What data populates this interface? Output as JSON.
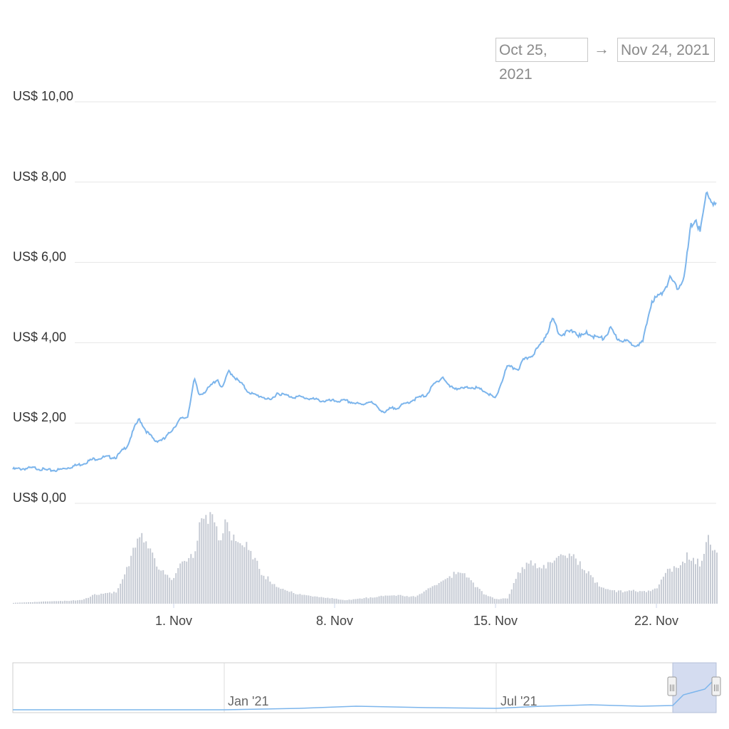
{
  "range_selector": {
    "from": "Oct 25, 2021",
    "to": "Nov 24, 2021",
    "arrow": "→"
  },
  "navigator": {
    "labels": [
      "Jan '21",
      "Jul '21"
    ],
    "handle_grip": "|||"
  },
  "colors": {
    "price_line": "#7cb5ec",
    "volume_bars": "#c6cbd4",
    "grid": "#e6e6e6",
    "nav_selection": "#d4dcf0"
  },
  "chart_data": {
    "type": "line",
    "y_ticks": [
      "US$ 0,00",
      "US$ 2,00",
      "US$ 4,00",
      "US$ 6,00",
      "US$ 8,00",
      "US$ 10,00"
    ],
    "y_tick_values": [
      0,
      2,
      4,
      6,
      8,
      10
    ],
    "ylim": [
      0,
      10
    ],
    "x_ticks": [
      "1. Nov",
      "8. Nov",
      "15. Nov",
      "22. Nov"
    ],
    "x_tick_values": [
      7,
      14,
      21,
      28
    ],
    "xlim": [
      0,
      30.6
    ],
    "grid": true,
    "series": [
      {
        "type": "line",
        "x": [
          0,
          1,
          1.5,
          2,
          3,
          3.5,
          4,
          4.5,
          5,
          5.3,
          5.5,
          5.8,
          6.2,
          6.6,
          7.3,
          7.6,
          7.9,
          8.1,
          8.4,
          8.9,
          9.1,
          9.4,
          9.8,
          10,
          10.2,
          10.5,
          10.9,
          11.2,
          11.5,
          11.8,
          12.2,
          12.5,
          13.5,
          14.5,
          15.2,
          15.5,
          16.2,
          16.4,
          16.8,
          17.5,
          18,
          18.3,
          18.7,
          19,
          19.5,
          20,
          20.5,
          21,
          21.5,
          22,
          22.2,
          22.6,
          22.9,
          23.2,
          23.5,
          23.8,
          24.1,
          24.4,
          24.7,
          25,
          25.3,
          25.7,
          26,
          26.3,
          26.6,
          27,
          27.4,
          27.8,
          28.2,
          28.6,
          28.9,
          29.2,
          29.5,
          29.7,
          29.9,
          30.2,
          30.4,
          30.6
        ],
        "y": [
          0.85,
          0.88,
          0.82,
          0.83,
          0.98,
          1.1,
          1.15,
          1.15,
          1.45,
          1.9,
          2.1,
          1.8,
          1.55,
          1.6,
          2.1,
          2.15,
          3.1,
          2.7,
          2.8,
          3.1,
          2.85,
          3.3,
          3.05,
          2.95,
          2.8,
          2.7,
          2.65,
          2.55,
          2.75,
          2.7,
          2.65,
          2.65,
          2.55,
          2.55,
          2.45,
          2.55,
          2.25,
          2.35,
          2.4,
          2.6,
          2.7,
          2.95,
          3.15,
          2.9,
          2.85,
          2.9,
          2.8,
          2.6,
          3.4,
          3.35,
          3.55,
          3.7,
          3.9,
          4.2,
          4.6,
          4.2,
          4.25,
          4.3,
          4.15,
          4.25,
          4.15,
          4.1,
          4.35,
          4.1,
          4.05,
          3.95,
          4.0,
          5.05,
          5.2,
          5.6,
          5.35,
          5.6,
          6.9,
          7.1,
          6.75,
          7.8,
          7.5,
          7.4
        ]
      },
      {
        "type": "area",
        "x": [
          0,
          3,
          3.5,
          4.5,
          5,
          5.3,
          5.6,
          6,
          6.5,
          6.9,
          7.2,
          7.4,
          7.8,
          8.2,
          8.6,
          9,
          9.3,
          9.6,
          10,
          10.4,
          10.8,
          11.2,
          11.8,
          12.5,
          13.5,
          14.5,
          15.5,
          16.5,
          17.5,
          18,
          18.5,
          19,
          19.5,
          20,
          20.5,
          21,
          21.5,
          22,
          22.5,
          23,
          23.5,
          24,
          24.5,
          25,
          25.5,
          26,
          26.5,
          27,
          27.5,
          28,
          28.5,
          29,
          29.3,
          29.6,
          29.9,
          30.2,
          30.4,
          30.6
        ],
        "y": [
          0.01,
          0.04,
          0.1,
          0.13,
          0.45,
          0.7,
          0.74,
          0.55,
          0.35,
          0.25,
          0.45,
          0.5,
          0.55,
          0.95,
          0.97,
          0.75,
          0.95,
          0.7,
          0.72,
          0.55,
          0.35,
          0.25,
          0.15,
          0.1,
          0.07,
          0.04,
          0.07,
          0.1,
          0.08,
          0.15,
          0.25,
          0.32,
          0.35,
          0.22,
          0.1,
          0.05,
          0.06,
          0.38,
          0.45,
          0.42,
          0.45,
          0.58,
          0.5,
          0.35,
          0.2,
          0.15,
          0.14,
          0.15,
          0.14,
          0.18,
          0.38,
          0.42,
          0.55,
          0.5,
          0.45,
          0.75,
          0.65,
          0.6
        ]
      }
    ]
  }
}
